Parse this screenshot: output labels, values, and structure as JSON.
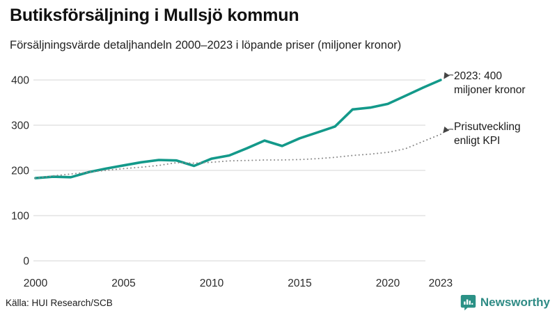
{
  "header": {
    "title": "Butiksförsäljning i Mullsjö kommun",
    "subtitle": "Försäljningsvärde detaljhandeln 2000–2023 i löpande priser (miljoner kronor)"
  },
  "chart_data": {
    "type": "line",
    "title": "Butiksförsäljning i Mullsjö kommun",
    "subtitle": "Försäljningsvärde detaljhandeln 2000–2023 i löpande priser (miljoner kronor)",
    "x": [
      2000,
      2001,
      2002,
      2003,
      2004,
      2005,
      2006,
      2007,
      2008,
      2009,
      2010,
      2011,
      2012,
      2013,
      2014,
      2015,
      2016,
      2017,
      2018,
      2019,
      2020,
      2021,
      2022,
      2023
    ],
    "series": [
      {
        "name": "Butiksförsäljning (löpande priser, miljoner kronor)",
        "style": "solid",
        "color": "#13998a",
        "values": [
          183,
          186,
          185,
          196,
          204,
          211,
          218,
          223,
          222,
          210,
          226,
          233,
          249,
          266,
          254,
          271,
          284,
          297,
          335,
          339,
          347,
          365,
          383,
          400
        ]
      },
      {
        "name": "Prisutveckling enligt KPI",
        "style": "dotted",
        "color": "#8a8a8a",
        "values": [
          183,
          188,
          192,
          196,
          200,
          204,
          207,
          211,
          217,
          216,
          218,
          221,
          222,
          223,
          223,
          224,
          226,
          229,
          233,
          236,
          240,
          248,
          264,
          280
        ]
      }
    ],
    "ylim": [
      0,
      400
    ],
    "yticks": [
      0,
      100,
      200,
      300,
      400
    ],
    "xticks": [
      2000,
      2005,
      2010,
      2015,
      2020,
      2023
    ],
    "grid": "horizontal",
    "legend": "none",
    "annotations": [
      {
        "line1": "2023: 400",
        "line2": "miljoner kronor",
        "points_to": "solid line end 2023 = 400"
      },
      {
        "line1": "Prisutveckling",
        "line2": "enligt KPI",
        "points_to": "dotted line end 2023 ≈ 280"
      }
    ]
  },
  "footer": {
    "source": "Källa: HUI Research/SCB",
    "brand": "Newsworthy"
  },
  "icons": {
    "brand": "newsworthy-speech-bubble-bar-chart-icon"
  },
  "colors": {
    "accent_teal": "#13998a",
    "kpi_dotted": "#8a8a8a",
    "gridline": "#d4d4d4",
    "tick_text": "#2b2b2b",
    "brand_text": "#2f8b85",
    "arrow": "#444444"
  }
}
